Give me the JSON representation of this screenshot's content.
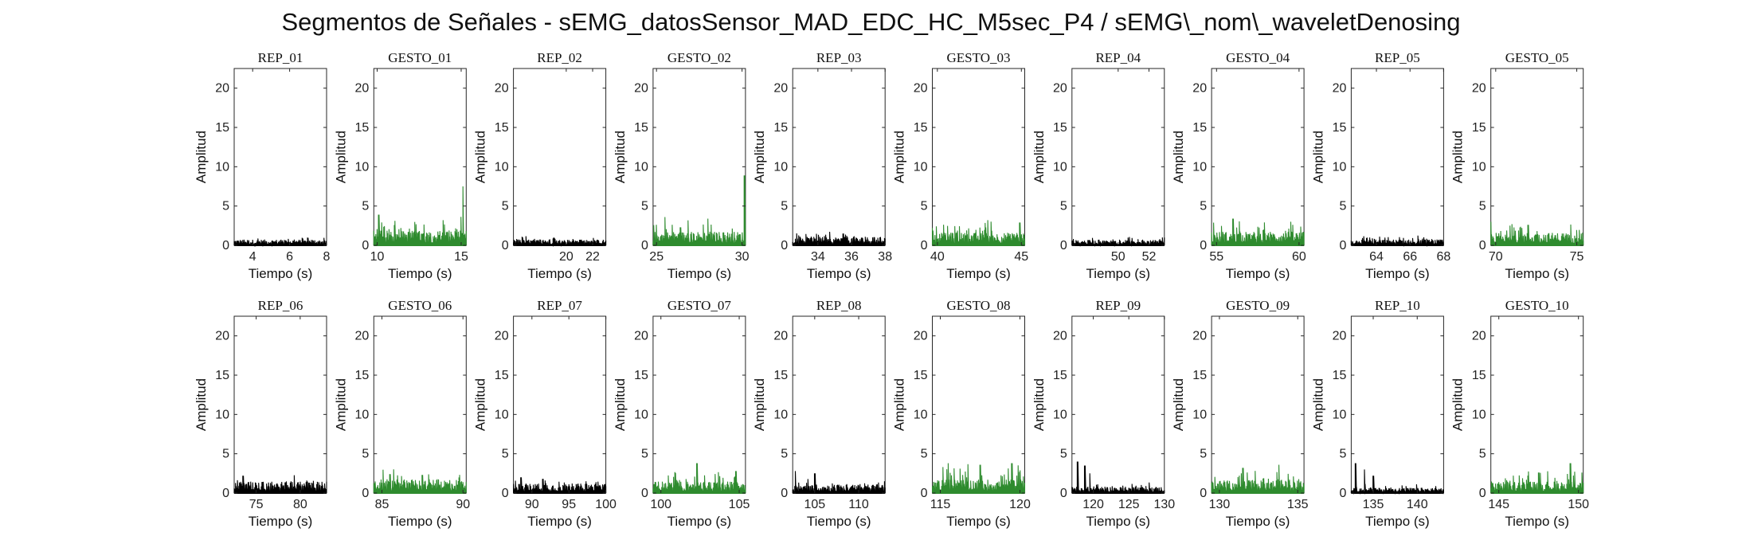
{
  "title": "Segmentos de Señales - sEMG_datosSensor_MAD_EDC_HC_M5sec_P4 / sEMG\\_nom\\_waveletDenosing",
  "colors": {
    "rep": "#000000",
    "gesto": "#2e8b2e",
    "axes": "#262626"
  },
  "chart_data": [
    {
      "type": "area",
      "title": "REP_01",
      "xlabel": "Tiempo (s)",
      "ylabel": "Amplitud",
      "xlim": [
        3,
        8
      ],
      "ylim": [
        0,
        22.5
      ],
      "xticks": [
        4,
        6,
        8
      ],
      "yticks": [
        0,
        5,
        10,
        15,
        20
      ],
      "series_kind": "rep",
      "level": 0.55,
      "noise": 0.35,
      "peaks": []
    },
    {
      "type": "area",
      "title": "GESTO_01",
      "xlabel": "Tiempo (s)",
      "ylabel": "Amplitud",
      "xlim": [
        9.8,
        15.3
      ],
      "ylim": [
        0,
        22.5
      ],
      "xticks": [
        10,
        15
      ],
      "yticks": [
        0,
        5,
        10,
        15,
        20
      ],
      "series_kind": "gesto",
      "level": 1.4,
      "noise": 1.2,
      "peaks": [
        [
          10.1,
          3.9
        ],
        [
          15.1,
          7.5
        ]
      ]
    },
    {
      "type": "area",
      "title": "REP_02",
      "xlabel": "Tiempo (s)",
      "ylabel": "Amplitud",
      "xlim": [
        16,
        23
      ],
      "ylim": [
        0,
        22.5
      ],
      "xticks": [
        20,
        22
      ],
      "yticks": [
        0,
        5,
        10,
        15,
        20
      ],
      "series_kind": "rep",
      "level": 0.55,
      "noise": 0.35,
      "peaks": []
    },
    {
      "type": "area",
      "title": "GESTO_02",
      "xlabel": "Tiempo (s)",
      "ylabel": "Amplitud",
      "xlim": [
        24.8,
        30.2
      ],
      "ylim": [
        0,
        22.5
      ],
      "xticks": [
        25,
        30
      ],
      "yticks": [
        0,
        5,
        10,
        15,
        20
      ],
      "series_kind": "gesto",
      "level": 1.3,
      "noise": 1.1,
      "peaks": [
        [
          25.5,
          3.6
        ],
        [
          28,
          3.4
        ],
        [
          30.15,
          8.9
        ]
      ]
    },
    {
      "type": "area",
      "title": "REP_03",
      "xlabel": "Tiempo (s)",
      "ylabel": "Amplitud",
      "xlim": [
        32.5,
        38
      ],
      "ylim": [
        0,
        22.5
      ],
      "xticks": [
        34,
        36,
        38
      ],
      "yticks": [
        0,
        5,
        10,
        15,
        20
      ],
      "series_kind": "rep",
      "level": 0.8,
      "noise": 0.5,
      "peaks": [
        [
          35.5,
          1.5
        ]
      ]
    },
    {
      "type": "area",
      "title": "GESTO_03",
      "xlabel": "Tiempo (s)",
      "ylabel": "Amplitud",
      "xlim": [
        39.7,
        45.2
      ],
      "ylim": [
        0,
        22.5
      ],
      "xticks": [
        40,
        45
      ],
      "yticks": [
        0,
        5,
        10,
        15,
        20
      ],
      "series_kind": "gesto",
      "level": 1.2,
      "noise": 1.0,
      "peaks": [
        [
          43,
          3.2
        ],
        [
          44.9,
          2.9
        ]
      ]
    },
    {
      "type": "area",
      "title": "REP_04",
      "xlabel": "Tiempo (s)",
      "ylabel": "Amplitud",
      "xlim": [
        47,
        53
      ],
      "ylim": [
        0,
        22.5
      ],
      "xticks": [
        50,
        52
      ],
      "yticks": [
        0,
        5,
        10,
        15,
        20
      ],
      "series_kind": "rep",
      "level": 0.5,
      "noise": 0.3,
      "peaks": []
    },
    {
      "type": "area",
      "title": "GESTO_04",
      "xlabel": "Tiempo (s)",
      "ylabel": "Amplitud",
      "xlim": [
        54.7,
        60.3
      ],
      "ylim": [
        0,
        22.5
      ],
      "xticks": [
        55,
        60
      ],
      "yticks": [
        0,
        5,
        10,
        15,
        20
      ],
      "series_kind": "gesto",
      "level": 1.3,
      "noise": 1.0,
      "peaks": [
        [
          56,
          3.4
        ],
        [
          59.5,
          3.0
        ]
      ]
    },
    {
      "type": "area",
      "title": "REP_05",
      "xlabel": "Tiempo (s)",
      "ylabel": "Amplitud",
      "xlim": [
        62.5,
        68
      ],
      "ylim": [
        0,
        22.5
      ],
      "xticks": [
        64,
        66,
        68
      ],
      "yticks": [
        0,
        5,
        10,
        15,
        20
      ],
      "series_kind": "rep",
      "level": 0.55,
      "noise": 0.35,
      "peaks": []
    },
    {
      "type": "area",
      "title": "GESTO_05",
      "xlabel": "Tiempo (s)",
      "ylabel": "Amplitud",
      "xlim": [
        69.7,
        75.4
      ],
      "ylim": [
        0,
        22.5
      ],
      "xticks": [
        70,
        75
      ],
      "yticks": [
        0,
        5,
        10,
        15,
        20
      ],
      "series_kind": "gesto",
      "level": 1.2,
      "noise": 1.0,
      "peaks": [
        [
          71,
          2.7
        ],
        [
          72,
          2.6
        ]
      ]
    },
    {
      "type": "area",
      "title": "REP_06",
      "xlabel": "Tiempo (s)",
      "ylabel": "Amplitud",
      "xlim": [
        72.5,
        83
      ],
      "ylim": [
        0,
        22.5
      ],
      "xticks": [
        75,
        80
      ],
      "yticks": [
        0,
        5,
        10,
        15,
        20
      ],
      "series_kind": "rep",
      "level": 1.1,
      "noise": 0.6,
      "peaks": [
        [
          73.5,
          2.2
        ]
      ]
    },
    {
      "type": "area",
      "title": "GESTO_06",
      "xlabel": "Tiempo (s)",
      "ylabel": "Amplitud",
      "xlim": [
        84.5,
        90.2
      ],
      "ylim": [
        0,
        22.5
      ],
      "xticks": [
        85,
        90
      ],
      "yticks": [
        0,
        5,
        10,
        15,
        20
      ],
      "series_kind": "gesto",
      "level": 1.3,
      "noise": 0.8,
      "peaks": [
        [
          85.5,
          2.4
        ],
        [
          87.5,
          2.3
        ]
      ]
    },
    {
      "type": "area",
      "title": "REP_07",
      "xlabel": "Tiempo (s)",
      "ylabel": "Amplitud",
      "xlim": [
        87.5,
        100
      ],
      "ylim": [
        0,
        22.5
      ],
      "xticks": [
        90,
        95,
        100
      ],
      "yticks": [
        0,
        5,
        10,
        15,
        20
      ],
      "series_kind": "rep",
      "level": 0.9,
      "noise": 0.6,
      "peaks": [
        [
          88.5,
          2.0
        ],
        [
          91.5,
          1.8
        ]
      ]
    },
    {
      "type": "area",
      "title": "GESTO_07",
      "xlabel": "Tiempo (s)",
      "ylabel": "Amplitud",
      "xlim": [
        99.5,
        105.4
      ],
      "ylim": [
        0,
        22.5
      ],
      "xticks": [
        100,
        105
      ],
      "yticks": [
        0,
        5,
        10,
        15,
        20
      ],
      "series_kind": "gesto",
      "level": 1.1,
      "noise": 0.9,
      "peaks": [
        [
          102.3,
          3.8
        ],
        [
          104.8,
          2.8
        ]
      ]
    },
    {
      "type": "area",
      "title": "REP_08",
      "xlabel": "Tiempo (s)",
      "ylabel": "Amplitud",
      "xlim": [
        102.5,
        113
      ],
      "ylim": [
        0,
        22.5
      ],
      "xticks": [
        105,
        110
      ],
      "yticks": [
        0,
        5,
        10,
        15,
        20
      ],
      "series_kind": "rep",
      "level": 0.8,
      "noise": 0.5,
      "peaks": [
        [
          102.8,
          2.8
        ],
        [
          105,
          2.5
        ]
      ]
    },
    {
      "type": "area",
      "title": "GESTO_08",
      "xlabel": "Tiempo (s)",
      "ylabel": "Amplitud",
      "xlim": [
        114.5,
        120.3
      ],
      "ylim": [
        0,
        22.5
      ],
      "xticks": [
        115,
        120
      ],
      "yticks": [
        0,
        5,
        10,
        15,
        20
      ],
      "series_kind": "gesto",
      "level": 1.3,
      "noise": 1.2,
      "peaks": [
        [
          115.5,
          3.8
        ],
        [
          117.5,
          3.6
        ],
        [
          119.5,
          3.8
        ]
      ]
    },
    {
      "type": "area",
      "title": "REP_09",
      "xlabel": "Tiempo (s)",
      "ylabel": "Amplitud",
      "xlim": [
        117,
        130
      ],
      "ylim": [
        0,
        22.5
      ],
      "xticks": [
        120,
        125,
        130
      ],
      "yticks": [
        0,
        5,
        10,
        15,
        20
      ],
      "series_kind": "rep",
      "level": 0.6,
      "noise": 0.4,
      "peaks": [
        [
          117.8,
          4.0
        ],
        [
          118.8,
          3.5
        ],
        [
          119.5,
          2.5
        ]
      ]
    },
    {
      "type": "area",
      "title": "GESTO_09",
      "xlabel": "Tiempo (s)",
      "ylabel": "Amplitud",
      "xlim": [
        129.5,
        135.4
      ],
      "ylim": [
        0,
        22.5
      ],
      "xticks": [
        130,
        135
      ],
      "yticks": [
        0,
        5,
        10,
        15,
        20
      ],
      "series_kind": "gesto",
      "level": 1.2,
      "noise": 1.0,
      "peaks": [
        [
          131.5,
          3.2
        ],
        [
          133.8,
          3.6
        ]
      ]
    },
    {
      "type": "area",
      "title": "REP_10",
      "xlabel": "Tiempo (s)",
      "ylabel": "Amplitud",
      "xlim": [
        132.5,
        143
      ],
      "ylim": [
        0,
        22.5
      ],
      "xticks": [
        135,
        140
      ],
      "yticks": [
        0,
        5,
        10,
        15,
        20
      ],
      "series_kind": "rep",
      "level": 0.5,
      "noise": 0.4,
      "peaks": [
        [
          133,
          3.8
        ],
        [
          134,
          3.0
        ],
        [
          135,
          2.2
        ]
      ]
    },
    {
      "type": "area",
      "title": "GESTO_10",
      "xlabel": "Tiempo (s)",
      "ylabel": "Amplitud",
      "xlim": [
        144.5,
        150.3
      ],
      "ylim": [
        0,
        22.5
      ],
      "xticks": [
        145,
        150
      ],
      "yticks": [
        0,
        5,
        10,
        15,
        20
      ],
      "series_kind": "gesto",
      "level": 1.1,
      "noise": 0.9,
      "peaks": [
        [
          147.5,
          2.6
        ],
        [
          149.5,
          3.8
        ]
      ]
    }
  ]
}
